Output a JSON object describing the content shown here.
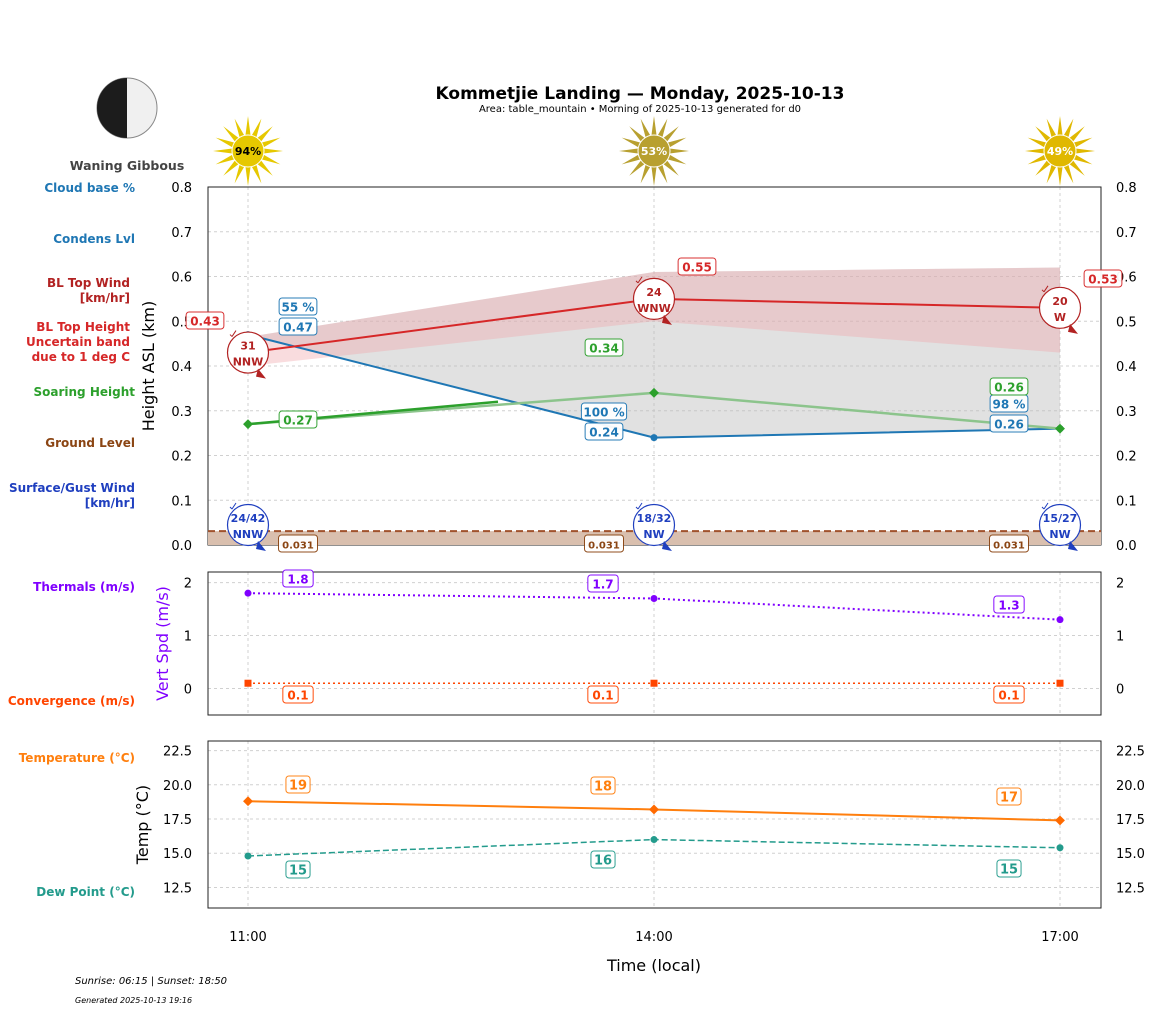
{
  "title": "Kommetjie Landing — Monday, 2025-10-13",
  "subtitle": "Area: table_mountain • Morning of 2025-10-13 generated for d0",
  "moon": {
    "phase": "Waning Gibbous",
    "icon": "half-moon-icon"
  },
  "footer": {
    "sun": "Sunrise: 06:15 | Sunset: 18:50",
    "generated": "Generated 2025-10-13 19:16"
  },
  "colors": {
    "bl_top": "#d62728",
    "condens": "#1f77b4",
    "soaring": "#2ca02c",
    "ground": "#8b4513",
    "surface_wind": "#1f3fbf",
    "thermals": "#8000ff",
    "convergence": "#ff4500",
    "temperature": "#ff7f0e",
    "dew": "#239b8c",
    "sun": "#e6c800"
  },
  "chart_data": [
    {
      "type": "line",
      "xlabel": "",
      "ylabel": "Height ASL (km)",
      "ylim": [
        0,
        0.8
      ],
      "yticks": [
        "0.0",
        "0.1",
        "0.2",
        "0.3",
        "0.4",
        "0.5",
        "0.6",
        "0.7",
        "0.8"
      ],
      "x": [
        "11:00",
        "14:00",
        "17:00"
      ],
      "grid": true,
      "sun_percent": [
        94,
        53,
        49
      ],
      "row_labels": [
        "Cloud base %",
        "Condens Lvl",
        "BL Top Wind [km/hr]",
        "BL Top Height Uncertain band due to 1 deg C",
        "Soaring Height",
        "Ground Level",
        "Surface/Gust Wind [km/hr]"
      ],
      "series": [
        {
          "key": "bl_top",
          "values": [
            0.43,
            0.55,
            0.53
          ],
          "labels": [
            "0.43",
            "0.55",
            "0.53"
          ],
          "band_upper": [
            0.465,
            0.61,
            0.62
          ],
          "band_lower": [
            0.4,
            0.5,
            0.43
          ]
        },
        {
          "key": "condens",
          "values": [
            0.47,
            0.24,
            0.26
          ],
          "labels": [
            "0.47",
            "0.24",
            "0.26"
          ],
          "cloud_base_pct": [
            "55 %",
            "100 %",
            "98 %"
          ]
        },
        {
          "key": "soaring",
          "values": [
            0.27,
            0.34,
            0.26
          ],
          "labels": [
            "0.27",
            "0.34",
            "0.26"
          ]
        },
        {
          "key": "ground",
          "values": [
            0.031,
            0.031,
            0.031
          ],
          "labels": [
            "0.031",
            "0.031",
            "0.031"
          ]
        }
      ],
      "bl_top_wind": [
        {
          "speed": "31",
          "dir": "NNW"
        },
        {
          "speed": "24",
          "dir": "WNW"
        },
        {
          "speed": "20",
          "dir": "W"
        }
      ],
      "surface_wind": [
        {
          "speed": "24/42",
          "dir": "NNW"
        },
        {
          "speed": "18/32",
          "dir": "NW"
        },
        {
          "speed": "15/27",
          "dir": "NW"
        }
      ]
    },
    {
      "type": "line",
      "ylabel": "Vert Spd (m/s)",
      "ylim": [
        -0.5,
        2.2
      ],
      "yticks": [
        "0",
        "1",
        "2"
      ],
      "row_labels": [
        "Thermals (m/s)",
        "Convergence (m/s)"
      ],
      "series": [
        {
          "key": "thermals",
          "values": [
            1.8,
            1.7,
            1.3
          ],
          "labels": [
            "1.8",
            "1.7",
            "1.3"
          ]
        },
        {
          "key": "convergence",
          "values": [
            0.1,
            0.1,
            0.1
          ],
          "labels": [
            "0.1",
            "0.1",
            "0.1"
          ]
        }
      ]
    },
    {
      "type": "line",
      "xlabel": "Time (local)",
      "ylabel": "Temp (°C)",
      "ylim": [
        11.0,
        23.2
      ],
      "yticks": [
        "12.5",
        "15.0",
        "17.5",
        "20.0",
        "22.5"
      ],
      "xticks": [
        "11:00",
        "14:00",
        "17:00"
      ],
      "row_labels": [
        "Temperature (°C)",
        "Dew Point (°C)"
      ],
      "series": [
        {
          "key": "temperature",
          "values": [
            18.8,
            18.2,
            17.4
          ],
          "labels": [
            "19",
            "18",
            "17"
          ]
        },
        {
          "key": "dew",
          "values": [
            14.8,
            16.0,
            15.4
          ],
          "labels": [
            "15",
            "16",
            "15"
          ]
        }
      ]
    }
  ]
}
